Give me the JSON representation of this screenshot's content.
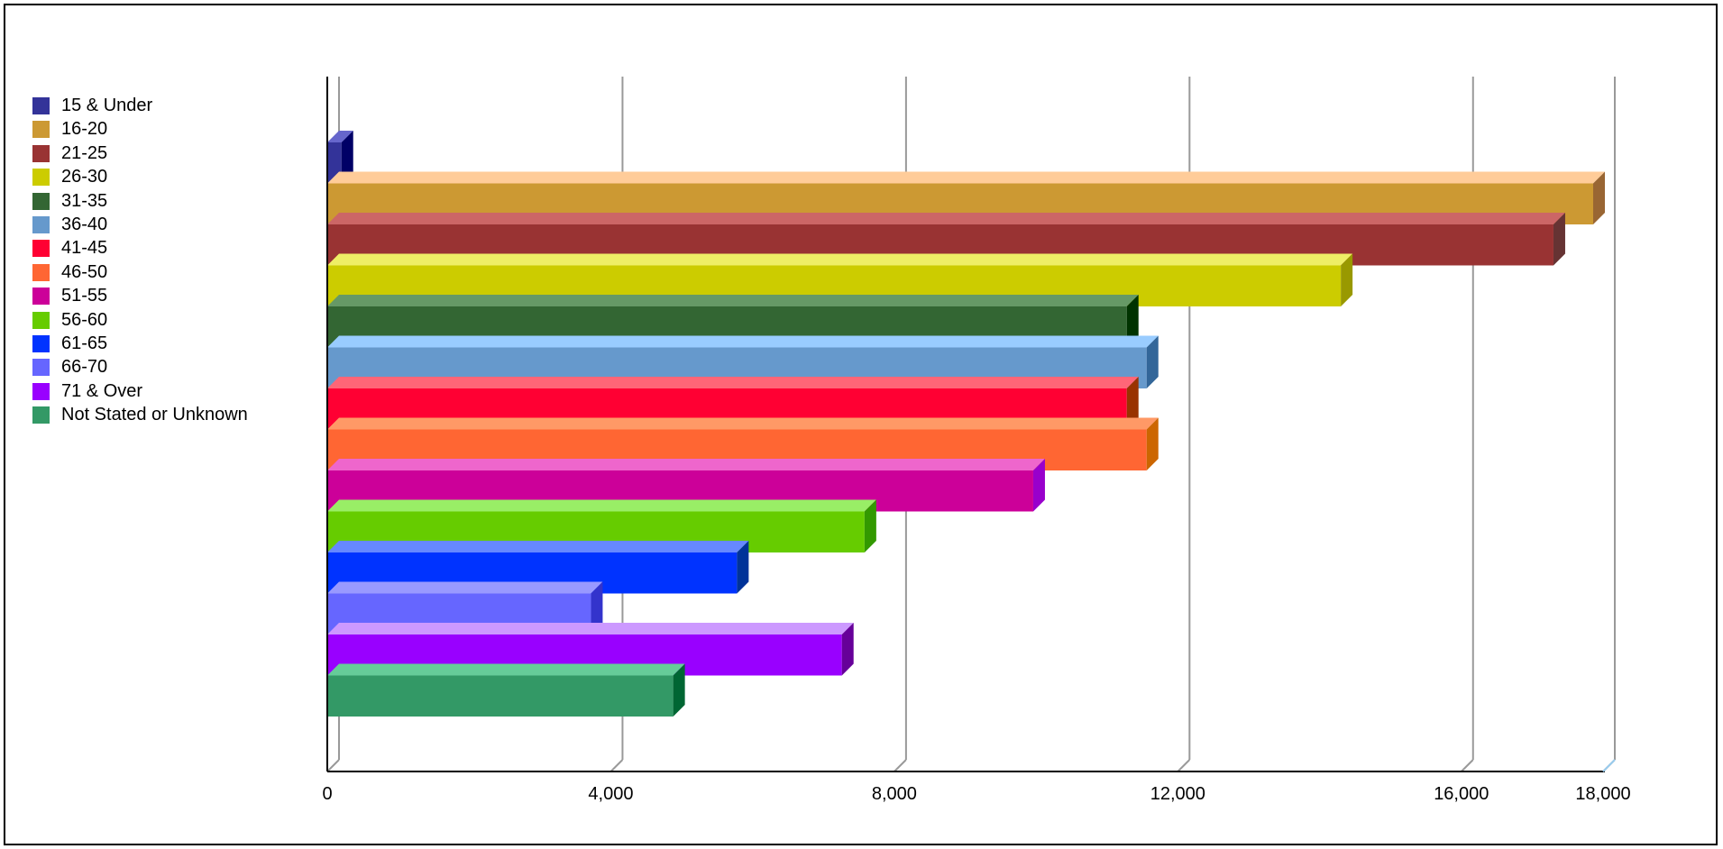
{
  "chart_data": {
    "type": "bar",
    "orientation": "horizontal",
    "three_d": true,
    "title": "",
    "xlabel": "",
    "ylabel": "",
    "xlim": [
      0,
      18000
    ],
    "xticks": [
      0,
      4000,
      8000,
      12000,
      16000,
      18000
    ],
    "xtick_labels": [
      "0",
      "4,000",
      "8,000",
      "12,000",
      "16,000",
      "18,000"
    ],
    "grid": "vertical",
    "legend_position": "left",
    "series": [
      {
        "name": "15 & Under",
        "value": 200,
        "color": "#333399",
        "side_color": "#000066",
        "top_color": "#6666cc"
      },
      {
        "name": "16-20",
        "value": 17860,
        "color": "#cc9933",
        "side_color": "#996633",
        "top_color": "#ffcc99"
      },
      {
        "name": "21-25",
        "value": 17300,
        "color": "#993333",
        "side_color": "#663333",
        "top_color": "#cc6666"
      },
      {
        "name": "26-30",
        "value": 14300,
        "color": "#cccc00",
        "side_color": "#999900",
        "top_color": "#eeee66"
      },
      {
        "name": "31-35",
        "value": 11280,
        "color": "#336633",
        "side_color": "#003300",
        "top_color": "#669966"
      },
      {
        "name": "36-40",
        "value": 11560,
        "color": "#6699cc",
        "side_color": "#336699",
        "top_color": "#99ccff"
      },
      {
        "name": "41-45",
        "value": 11280,
        "color": "#ff0033",
        "side_color": "#993300",
        "top_color": "#ff6677"
      },
      {
        "name": "46-50",
        "value": 11560,
        "color": "#ff6633",
        "side_color": "#cc6600",
        "top_color": "#ff9966"
      },
      {
        "name": "51-55",
        "value": 9960,
        "color": "#cc0099",
        "side_color": "#9900cc",
        "top_color": "#ee66cc"
      },
      {
        "name": "56-60",
        "value": 7580,
        "color": "#66cc00",
        "side_color": "#339900",
        "top_color": "#99ee66"
      },
      {
        "name": "61-65",
        "value": 5780,
        "color": "#0033ff",
        "side_color": "#003399",
        "top_color": "#6688ff"
      },
      {
        "name": "66-70",
        "value": 3720,
        "color": "#6666ff",
        "side_color": "#3333cc",
        "top_color": "#9999ff"
      },
      {
        "name": "71 & Over",
        "value": 7260,
        "color": "#9900ff",
        "side_color": "#660099",
        "top_color": "#cc99ff"
      },
      {
        "name": "Not Stated or Unknown",
        "value": 4880,
        "color": "#339966",
        "side_color": "#006633",
        "top_color": "#66cc99"
      }
    ]
  }
}
